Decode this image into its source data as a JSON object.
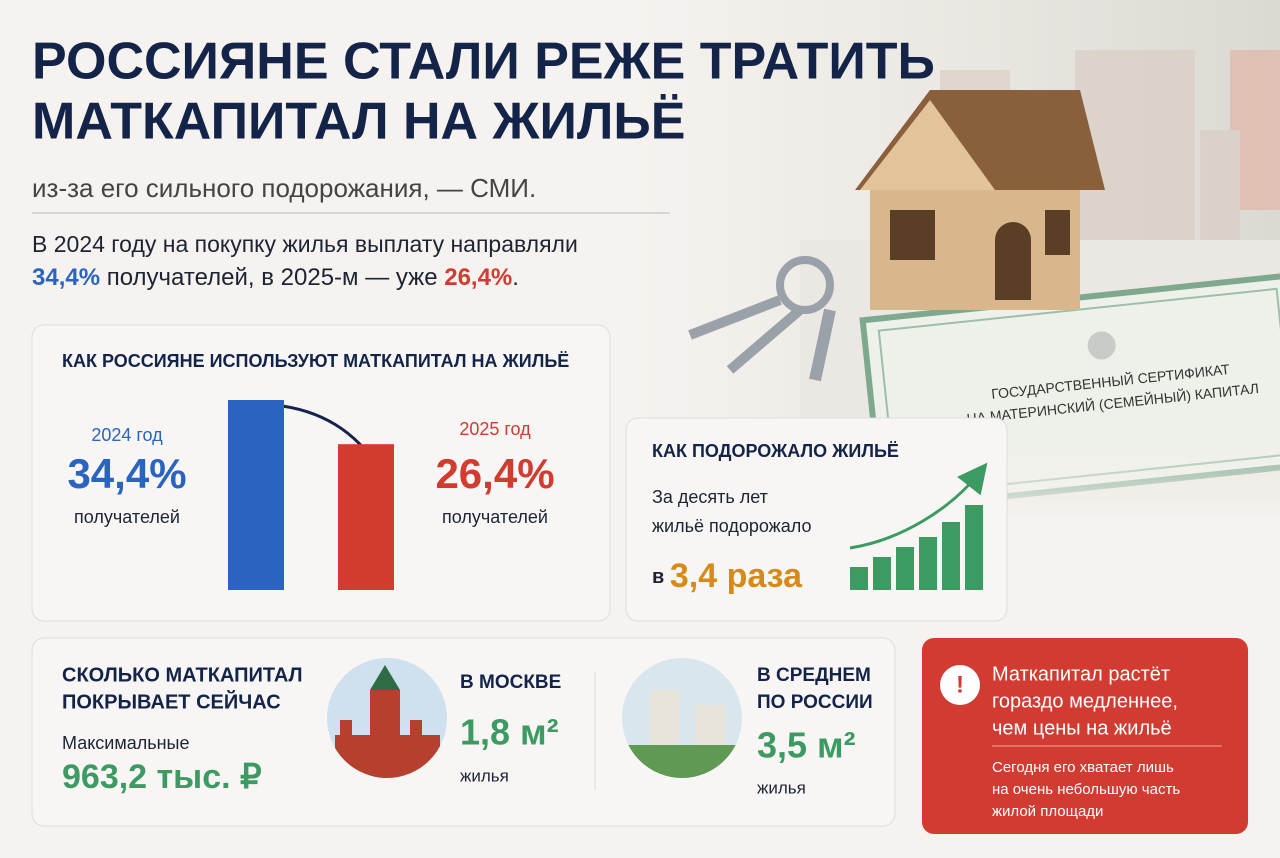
{
  "header": {
    "title": [
      "РОССИЯНЕ СТАЛИ РЕЖЕ ТРАТИТЬ",
      "МАТКАПИТАЛ НА ЖИЛЬЁ"
    ],
    "subtitle": "из-за его сильного подорожания, — СМИ.",
    "lead": [
      "В 2024 году на покупку жилья выплату направляли",
      "34,4%",
      " получателей, в 2025-м — уже ",
      "26,4%",
      "."
    ]
  },
  "certificate": [
    "ГОСУДАРСТВЕННЫЙ СЕРТИФИКАТ",
    "НА МАТЕРИНСКИЙ (СЕМЕЙНЫЙ) КАПИТАЛ"
  ],
  "usage": {
    "title": "КАК РОССИЯНЕ ИСПОЛЬЗУЮТ МАТКАПИТАЛ НА ЖИЛЬЁ",
    "bars": [
      {
        "year": "2024 год",
        "value": 34.4,
        "label": "34,4%",
        "caption": "получателей",
        "color": "#2a63c0"
      },
      {
        "year": "2025 год",
        "value": 26.4,
        "label": "26,4%",
        "caption": "получателей",
        "color": "#d13b30"
      }
    ]
  },
  "prices": {
    "title": "КАК ПОДОРОЖАЛО ЖИЛЬЁ",
    "text": [
      "За десять лет",
      "жильё подорожало"
    ],
    "result": [
      "в ",
      "3,4 раза"
    ]
  },
  "coverage": {
    "title": [
      "СКОЛЬКО МАТКАПИТАЛ",
      "ПОКРЫВАЕТ СЕЙЧАС"
    ],
    "max_label": "Максимальные",
    "max_value": "963,2 тыс. ₽",
    "moscow": {
      "title": [
        "В МОСКВЕ"
      ],
      "value": "1,8 м²",
      "unit": "жилья"
    },
    "russia": {
      "title": [
        "В СРЕДНЕМ",
        "ПО РОССИИ"
      ],
      "value": "3,5 м²",
      "unit": "жилья"
    }
  },
  "alert": {
    "icon": "!",
    "headline": [
      "Маткапитал растёт",
      "гораздо медленнее,",
      "чем цены на жильё"
    ],
    "text": [
      "Сегодня его хватает лишь",
      "на очень небольшую часть",
      "жилой площади"
    ]
  }
}
